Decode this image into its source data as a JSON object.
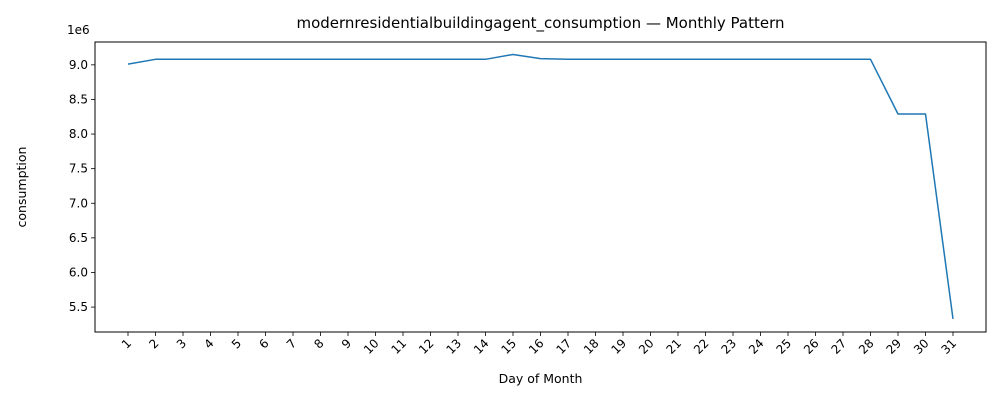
{
  "chart_data": {
    "type": "line",
    "title": "modernresidentialbuildingagent_consumption — Monthly Pattern",
    "xlabel": "Day of Month",
    "ylabel": "consumption",
    "y_offset_text": "1e6",
    "x": [
      1,
      2,
      3,
      4,
      5,
      6,
      7,
      8,
      9,
      10,
      11,
      12,
      13,
      14,
      15,
      16,
      17,
      18,
      19,
      20,
      21,
      22,
      23,
      24,
      25,
      26,
      27,
      28,
      29,
      30,
      31
    ],
    "x_tick_labels": [
      "1",
      "2",
      "3",
      "4",
      "5",
      "6",
      "7",
      "8",
      "9",
      "10",
      "11",
      "12",
      "13",
      "14",
      "15",
      "16",
      "17",
      "18",
      "19",
      "20",
      "21",
      "22",
      "23",
      "24",
      "25",
      "26",
      "27",
      "28",
      "29",
      "30",
      "31"
    ],
    "y_ticks": [
      5.5,
      6.0,
      6.5,
      7.0,
      7.5,
      8.0,
      8.5,
      9.0
    ],
    "y_tick_labels": [
      "5.5",
      "6.0",
      "6.5",
      "7.0",
      "7.5",
      "8.0",
      "8.5",
      "9.0"
    ],
    "series": [
      {
        "values": [
          9.01,
          9.08,
          9.08,
          9.08,
          9.08,
          9.08,
          9.08,
          9.08,
          9.08,
          9.08,
          9.08,
          9.08,
          9.08,
          9.08,
          9.15,
          9.09,
          9.08,
          9.08,
          9.08,
          9.08,
          9.08,
          9.08,
          9.08,
          9.08,
          9.08,
          9.08,
          9.08,
          9.08,
          8.29,
          8.29,
          5.33
        ],
        "color": "#1f77b4"
      }
    ],
    "xlim": [
      -0.2,
      32.2
    ],
    "ylim": [
      5.14,
      9.33
    ],
    "grid": false,
    "legend": "none"
  }
}
